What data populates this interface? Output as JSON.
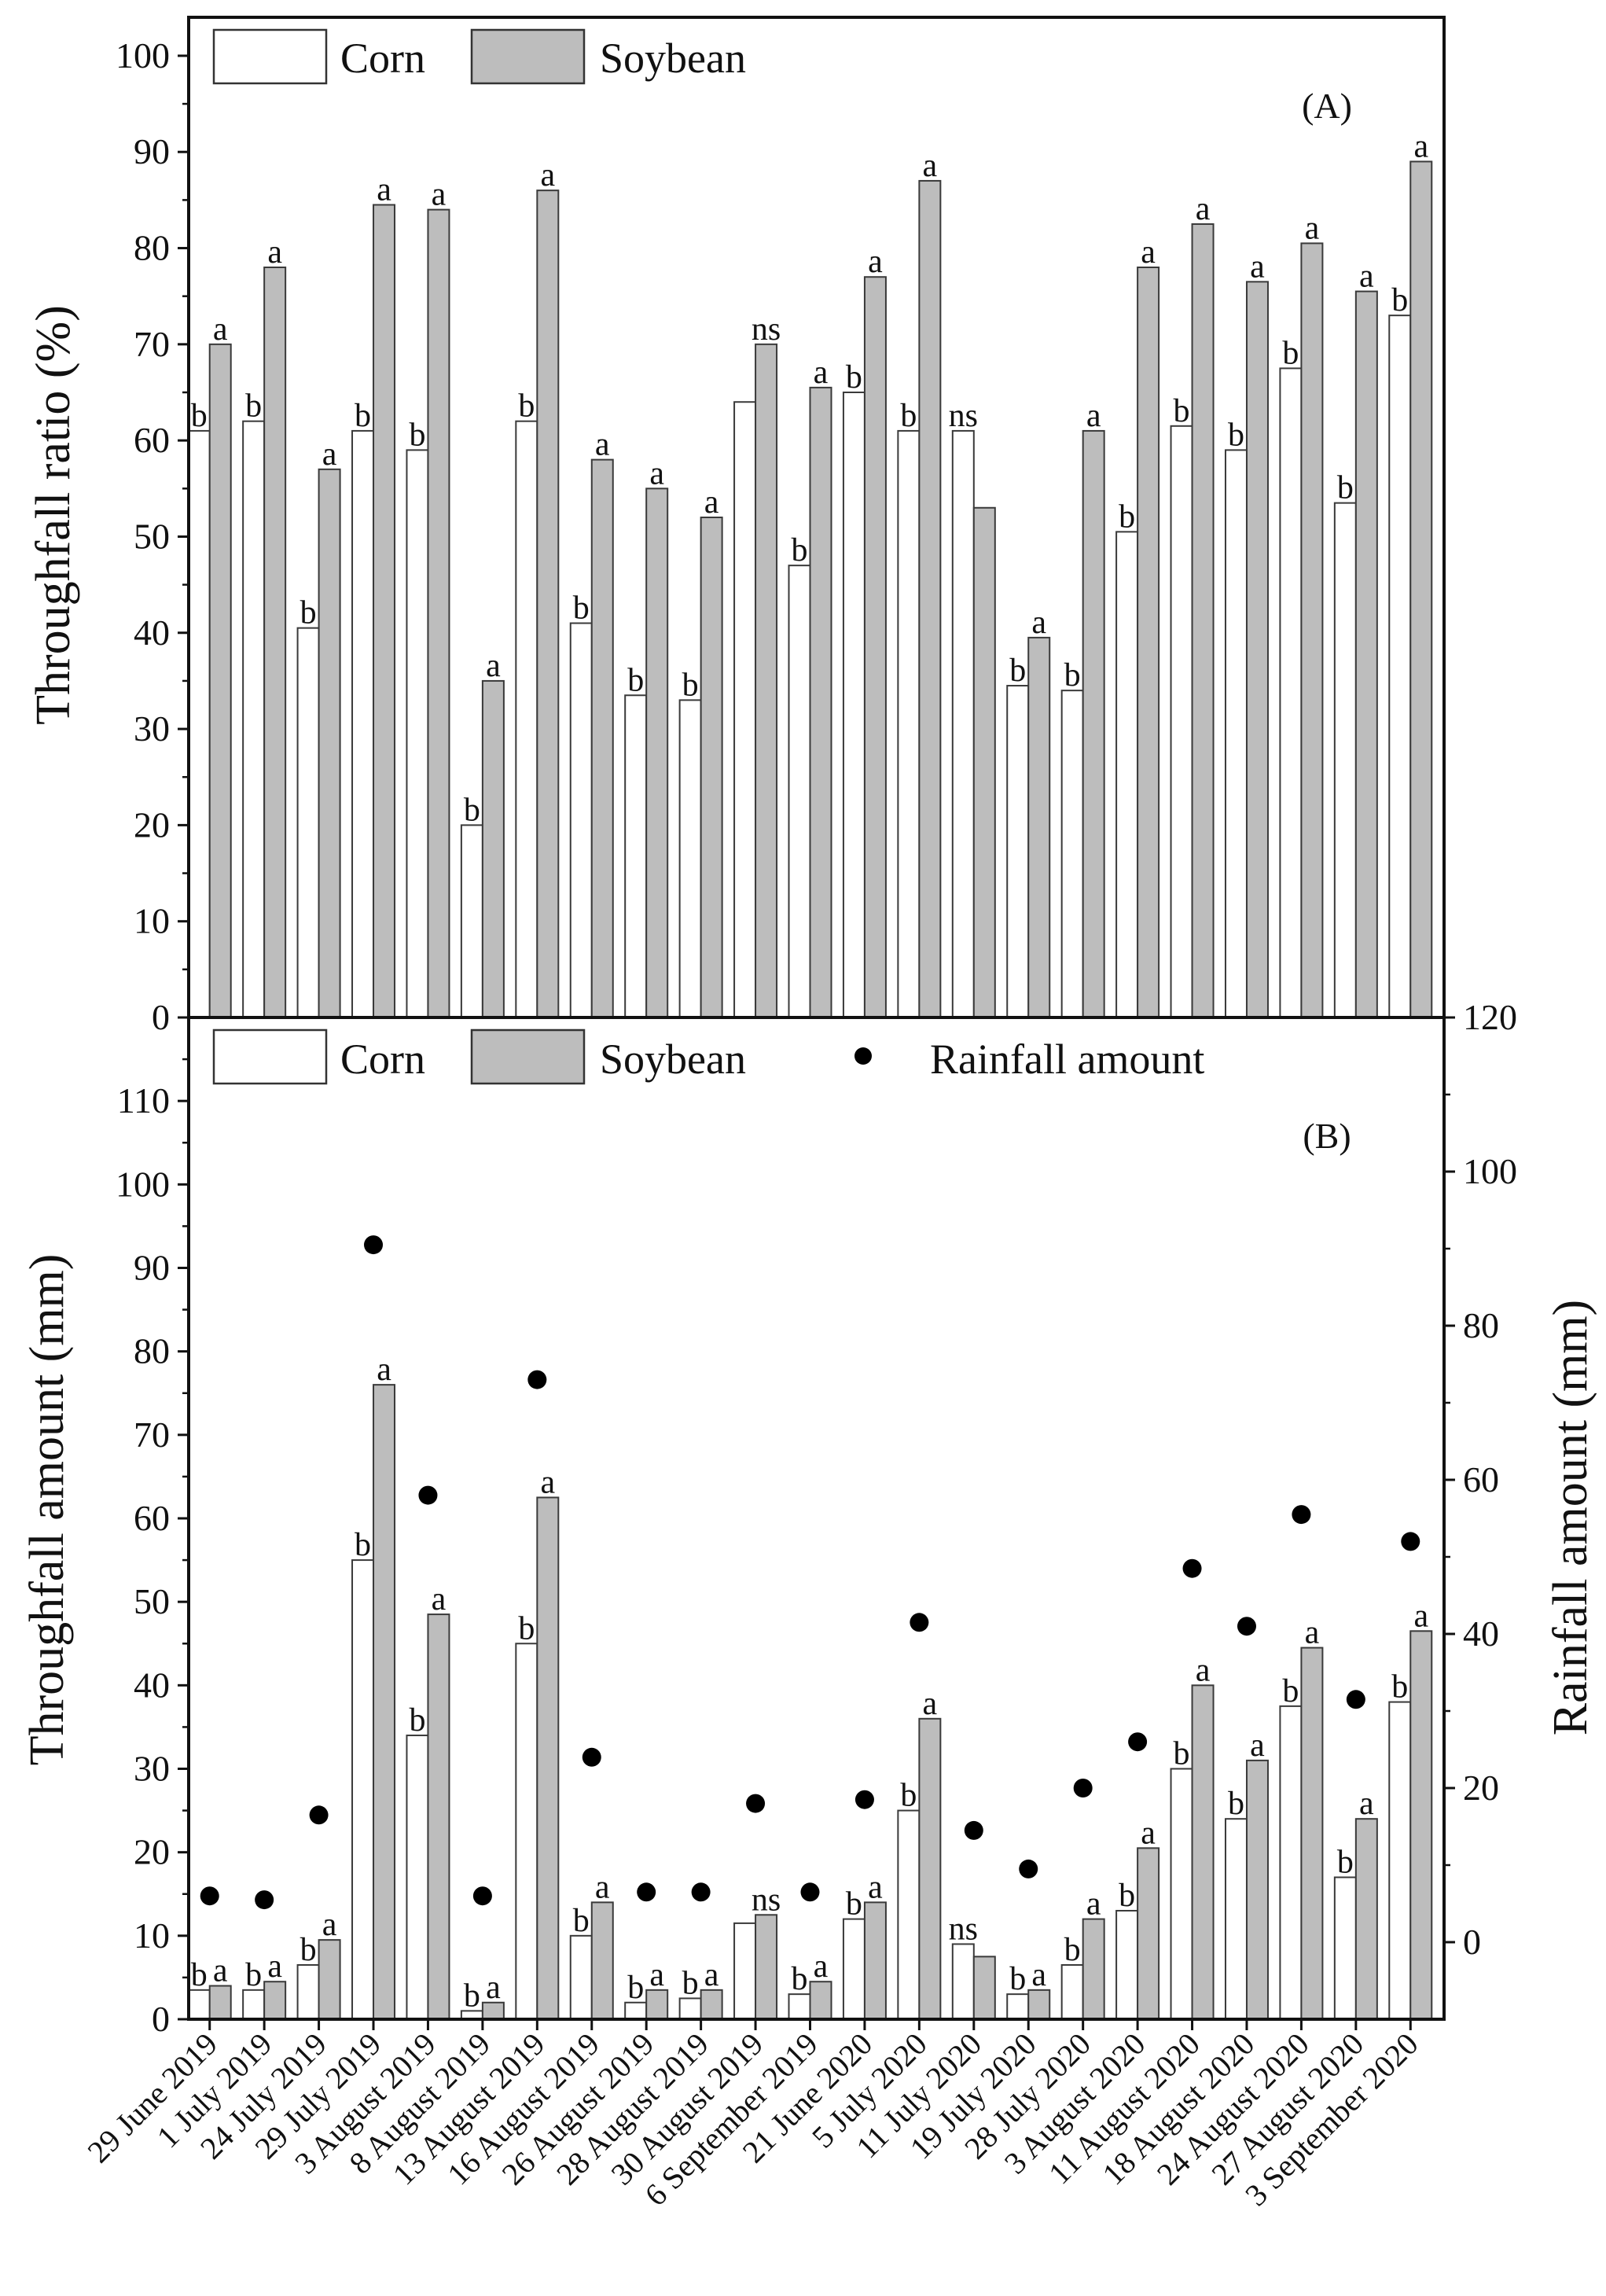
{
  "chart_data": [
    {
      "type": "bar",
      "panel_label": "(A)",
      "ylabel": "Throughfall ratio (%)",
      "ylim": [
        0,
        104
      ],
      "yticks": [
        0,
        10,
        20,
        30,
        40,
        50,
        60,
        70,
        80,
        90,
        100
      ],
      "legend": [
        "Corn",
        "Soybean"
      ],
      "legend_position": "top-left",
      "categories": [
        "29 June 2019",
        "1 July 2019",
        "24 July 2019",
        "29 July 2019",
        "3 August 2019",
        "8 August 2019",
        "13 August 2019",
        "16 August 2019",
        "26 August 2019",
        "28 August 2019",
        "30 August 2019",
        "6 September 2019",
        "21 June 2020",
        "5 July 2020",
        "11 July 2020",
        "19 July 2020",
        "28 July 2020",
        "3 August 2020",
        "11 August 2020",
        "18 August 2020",
        "24 August 2020",
        "27 August 2020",
        "3 September 2020"
      ],
      "series": [
        {
          "name": "Corn",
          "color": "#ffffff",
          "values": [
            61,
            62,
            40.5,
            61,
            59,
            20,
            62,
            41,
            33.5,
            33,
            64,
            47,
            65,
            61,
            61,
            34.5,
            34,
            50.5,
            61.5,
            59,
            67.5,
            53.5,
            73
          ],
          "labels": [
            "b",
            "b",
            "b",
            "b",
            "b",
            "b",
            "b",
            "b",
            "b",
            "b",
            "",
            "b",
            "b",
            "b",
            "ns",
            "b",
            "b",
            "b",
            "b",
            "b",
            "b",
            "b",
            "b"
          ]
        },
        {
          "name": "Soybean",
          "color": "#bdbdbd",
          "values": [
            70,
            78,
            57,
            84.5,
            84,
            35,
            86,
            58,
            55,
            52,
            70,
            65.5,
            77,
            87,
            53,
            39.5,
            61,
            78,
            82.5,
            76.5,
            80.5,
            75.5,
            89
          ],
          "labels": [
            "a",
            "a",
            "a",
            "a",
            "a",
            "a",
            "a",
            "a",
            "a",
            "a",
            "ns",
            "a",
            "a",
            "a",
            "",
            "a",
            "a",
            "a",
            "a",
            "a",
            "a",
            "a",
            "a"
          ]
        }
      ]
    },
    {
      "type": "bar",
      "panel_label": "(B)",
      "ylabel": "Throughfall amount (mm)",
      "ylabel_right": "Rainfall amount (mm)",
      "ylim": [
        0,
        120
      ],
      "yticks": [
        0,
        10,
        20,
        30,
        40,
        50,
        60,
        70,
        80,
        90,
        100,
        110
      ],
      "ylim_right": [
        -10,
        120
      ],
      "yticks_right": [
        0,
        20,
        40,
        60,
        80,
        100,
        120
      ],
      "legend": [
        "Corn",
        "Soybean",
        "Rainfall amount"
      ],
      "legend_position": "top-left",
      "categories": [
        "29 June 2019",
        "1 July 2019",
        "24 July 2019",
        "29 July 2019",
        "3 August 2019",
        "8 August 2019",
        "13 August 2019",
        "16 August 2019",
        "26 August 2019",
        "28 August 2019",
        "30 August 2019",
        "6 September 2019",
        "21 June 2020",
        "5 July 2020",
        "11 July 2020",
        "19 July 2020",
        "28 July 2020",
        "3 August 2020",
        "11 August 2020",
        "18 August 2020",
        "24 August 2020",
        "27 August 2020",
        "3 September 2020"
      ],
      "series": [
        {
          "name": "Corn",
          "color": "#ffffff",
          "values": [
            3.5,
            3.5,
            6.5,
            55,
            34,
            1,
            45,
            10,
            2,
            2.5,
            11.5,
            3,
            12,
            25,
            9,
            3,
            6.5,
            13,
            30,
            24,
            37.5,
            17,
            38
          ],
          "labels": [
            "b",
            "b",
            "b",
            "b",
            "b",
            "b",
            "b",
            "b",
            "b",
            "b",
            "",
            "b",
            "b",
            "b",
            "ns",
            "b",
            "b",
            "b",
            "b",
            "b",
            "b",
            "b",
            "b"
          ]
        },
        {
          "name": "Soybean",
          "color": "#bdbdbd",
          "values": [
            4,
            4.5,
            9.5,
            76,
            48.5,
            2,
            62.5,
            14,
            3.5,
            3.5,
            12.5,
            4.5,
            14,
            36,
            7.5,
            3.5,
            12,
            20.5,
            40,
            31,
            44.5,
            24,
            46.5
          ],
          "labels": [
            "a",
            "a",
            "a",
            "a",
            "a",
            "a",
            "a",
            "a",
            "a",
            "a",
            "ns",
            "a",
            "a",
            "a",
            "",
            "a",
            "a",
            "a",
            "a",
            "a",
            "a",
            "a",
            "a"
          ]
        },
        {
          "name": "Rainfall amount",
          "axis": "right",
          "marker": "circle",
          "color": "#000000",
          "values": [
            6,
            5.5,
            16.5,
            90.5,
            58,
            6,
            73,
            24,
            6.5,
            6.5,
            18,
            6.5,
            18.5,
            41.5,
            14.5,
            9.5,
            20,
            26,
            48.5,
            41,
            55.5,
            31.5,
            52
          ]
        }
      ]
    }
  ]
}
